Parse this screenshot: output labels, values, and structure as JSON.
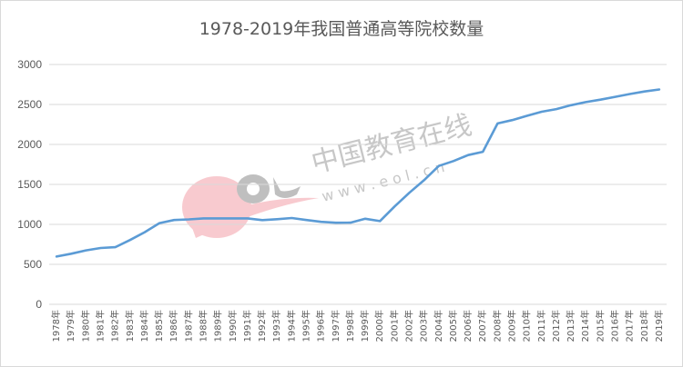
{
  "chart_data": {
    "type": "line",
    "title": "1978-2019年我国普通高等院校数量",
    "xlabel": "",
    "ylabel": "",
    "ylim": [
      0,
      3000
    ],
    "yticks": [
      0,
      500,
      1000,
      1500,
      2000,
      2500,
      3000
    ],
    "grid": true,
    "legend": null,
    "categories": [
      "1978年",
      "1979年",
      "1980年",
      "1981年",
      "1982年",
      "1983年",
      "1984年",
      "1985年",
      "1986年",
      "1987年",
      "1988年",
      "1989年",
      "1990年",
      "1991年",
      "1992年",
      "1993年",
      "1994年",
      "1995年",
      "1996年",
      "1997年",
      "1998年",
      "1999年",
      "2000年",
      "2001年",
      "2002年",
      "2003年",
      "2004年",
      "2005年",
      "2006年",
      "2007年",
      "2008年",
      "2009年",
      "2010年",
      "2011年",
      "2012年",
      "2013年",
      "2014年",
      "2015年",
      "2016年",
      "2017年",
      "2018年",
      "2019年"
    ],
    "series": [
      {
        "name": "普通高等院校数量",
        "color": "#5b9bd5",
        "values": [
          598,
          633,
          675,
          704,
          715,
          805,
          902,
          1016,
          1054,
          1063,
          1075,
          1075,
          1075,
          1075,
          1053,
          1065,
          1080,
          1054,
          1032,
          1020,
          1022,
          1071,
          1041,
          1225,
          1396,
          1552,
          1731,
          1792,
          1867,
          1908,
          2263,
          2305,
          2358,
          2409,
          2442,
          2491,
          2529,
          2560,
          2596,
          2631,
          2663,
          2688
        ]
      }
    ]
  },
  "watermark": {
    "logo_text": "eol",
    "cn_text": "中国教育在线",
    "url_text": "w w w . e o l . c n"
  }
}
